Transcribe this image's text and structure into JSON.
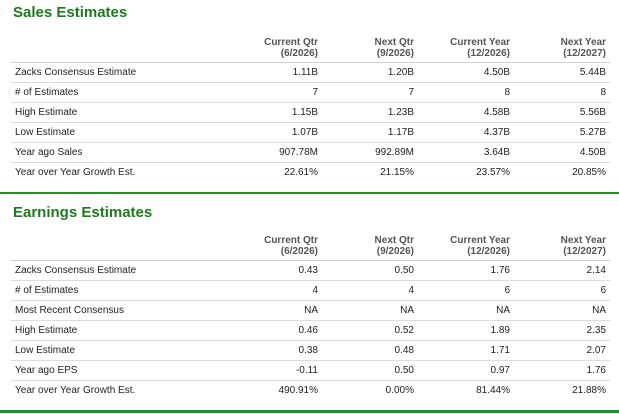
{
  "sales": {
    "title": "Sales Estimates",
    "headers": [
      {
        "line1": "Current Qtr",
        "line2": "(6/2026)"
      },
      {
        "line1": "Next Qtr",
        "line2": "(9/2026)"
      },
      {
        "line1": "Current Year",
        "line2": "(12/2026)"
      },
      {
        "line1": "Next Year",
        "line2": "(12/2027)"
      }
    ],
    "rows": [
      {
        "label": "Zacks Consensus Estimate",
        "values": [
          "1.11B",
          "1.20B",
          "4.50B",
          "5.44B"
        ]
      },
      {
        "label": "# of Estimates",
        "values": [
          "7",
          "7",
          "8",
          "8"
        ]
      },
      {
        "label": "High Estimate",
        "values": [
          "1.15B",
          "1.23B",
          "4.58B",
          "5.56B"
        ]
      },
      {
        "label": "Low Estimate",
        "values": [
          "1.07B",
          "1.17B",
          "4.37B",
          "5.27B"
        ]
      },
      {
        "label": "Year ago Sales",
        "values": [
          "907.78M",
          "992.89M",
          "3.64B",
          "4.50B"
        ]
      },
      {
        "label": "Year over Year Growth Est.",
        "values": [
          "22.61%",
          "21.15%",
          "23.57%",
          "20.85%"
        ]
      }
    ]
  },
  "earnings": {
    "title": "Earnings Estimates",
    "headers": [
      {
        "line1": "Current Qtr",
        "line2": "(6/2026)"
      },
      {
        "line1": "Next Qtr",
        "line2": "(9/2026)"
      },
      {
        "line1": "Current Year",
        "line2": "(12/2026)"
      },
      {
        "line1": "Next Year",
        "line2": "(12/2027)"
      }
    ],
    "rows": [
      {
        "label": "Zacks Consensus Estimate",
        "values": [
          "0.43",
          "0.50",
          "1.76",
          "2.14"
        ]
      },
      {
        "label": "# of Estimates",
        "values": [
          "4",
          "4",
          "6",
          "6"
        ]
      },
      {
        "label": "Most Recent Consensus",
        "values": [
          "NA",
          "NA",
          "NA",
          "NA"
        ]
      },
      {
        "label": "High Estimate",
        "values": [
          "0.46",
          "0.52",
          "1.89",
          "2.35"
        ]
      },
      {
        "label": "Low Estimate",
        "values": [
          "0.38",
          "0.48",
          "1.71",
          "2.07"
        ]
      },
      {
        "label": "Year ago EPS",
        "values": [
          "-0.11",
          "0.50",
          "0.97",
          "1.76"
        ]
      },
      {
        "label": "Year over Year Growth Est.",
        "values": [
          "490.91%",
          "0.00%",
          "81.44%",
          "21.88%"
        ]
      }
    ]
  },
  "colors": {
    "title_green": "#1f7a1f",
    "rule_green": "#2d8a2d",
    "row_border": "#dcdcdc"
  }
}
